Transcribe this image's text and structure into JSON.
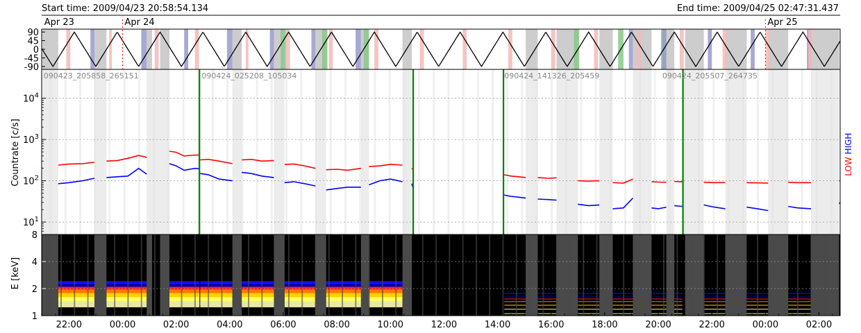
{
  "header": {
    "start_label": "Start time: 2009/04/23 20:58:54.134",
    "end_label": "End time: 2009/04/25 02:47:31.437"
  },
  "date_markers": [
    {
      "label": "Apr 23",
      "hour": 21.0
    },
    {
      "label": "Apr 24",
      "hour": 24.0
    },
    {
      "label": "Apr 25",
      "hour": 48.0
    }
  ],
  "colors": {
    "low": "#ff0000",
    "high": "#0000ff",
    "file_boundary": "#008000",
    "date_line": "#ff0000",
    "gray_band": "#c8c8c8",
    "saa_band": "#9999cc",
    "night_band": "#f4b8b8",
    "green_band": "#88c888",
    "spectrogram_gap": "#4a4a4a"
  },
  "chart_data": [
    {
      "type": "line",
      "name": "orbit-panel",
      "y_ticks": [
        90,
        45,
        0,
        -45,
        -90
      ],
      "ylim": [
        -105,
        105
      ],
      "xlim_hours": [
        20.98,
        50.79
      ],
      "orbit_period_hours": 1.6,
      "orbit_phase_hour": 20.6,
      "legend": "none",
      "grid": false
    },
    {
      "type": "line",
      "name": "countrate-panel",
      "ylabel": "Countrate [c/s]",
      "yscale": "log",
      "ylim": [
        5,
        50000
      ],
      "y_tick_labels": [
        "10^1",
        "10^2",
        "10^3",
        "10^4"
      ],
      "y_tick_values": [
        10,
        100,
        1000,
        10000
      ],
      "grid": true,
      "right_labels": {
        "low": "LOW",
        "high": "HIGH"
      },
      "file_ids": [
        {
          "label": "090423_205858_265151",
          "hour": 21.0
        },
        {
          "label": "090424_025208_105034",
          "hour": 26.9
        },
        {
          "label": "090424_141326_205459",
          "hour": 38.2
        },
        {
          "label": "090424_205507_264735",
          "hour": 44.1
        }
      ],
      "file_boundaries_hours": [
        26.87,
        34.85,
        38.22,
        44.92
      ],
      "series": [
        {
          "name": "LOW",
          "segments": [
            {
              "x": [
                20.98,
                21.0
              ],
              "y": [
                205,
                210
              ]
            },
            {
              "x": [
                21.6,
                22.0,
                22.5,
                22.95
              ],
              "y": [
                240,
                255,
                260,
                280
              ]
            },
            {
              "x": [
                23.4,
                23.8,
                24.2,
                24.6,
                24.9
              ],
              "y": [
                300,
                310,
                350,
                410,
                370
              ]
            },
            {
              "x": [
                25.75,
                26.0,
                26.3,
                26.7,
                26.87
              ],
              "y": [
                520,
                490,
                400,
                420,
                420
              ]
            },
            {
              "x": [
                26.9,
                27.2,
                27.6,
                28.1
              ],
              "y": [
                320,
                330,
                300,
                260
              ]
            },
            {
              "x": [
                28.45,
                28.8,
                29.2,
                29.65
              ],
              "y": [
                320,
                330,
                300,
                310
              ]
            },
            {
              "x": [
                30.05,
                30.4,
                30.8,
                31.2
              ],
              "y": [
                250,
                255,
                230,
                200
              ]
            },
            {
              "x": [
                31.6,
                32.0,
                32.4,
                32.9
              ],
              "y": [
                185,
                190,
                180,
                200
              ]
            },
            {
              "x": [
                33.2,
                33.6,
                34.0,
                34.45
              ],
              "y": [
                220,
                230,
                250,
                240
              ]
            },
            {
              "x": [
                34.8,
                34.85
              ],
              "y": [
                200,
                185
              ]
            },
            {
              "x": [
                38.25,
                38.5,
                38.8,
                39.05
              ],
              "y": [
                140,
                130,
                125,
                120
              ]
            },
            {
              "x": [
                39.5,
                39.9,
                40.2
              ],
              "y": [
                120,
                115,
                118
              ]
            },
            {
              "x": [
                41.0,
                41.4,
                41.8
              ],
              "y": [
                100,
                98,
                100
              ]
            },
            {
              "x": [
                42.3,
                42.7,
                43.05
              ],
              "y": [
                90,
                88,
                110
              ]
            },
            {
              "x": [
                43.75,
                44.0,
                44.3
              ],
              "y": [
                95,
                93,
                92
              ]
            },
            {
              "x": [
                44.6,
                44.9
              ],
              "y": [
                96,
                95
              ]
            },
            {
              "x": [
                45.7,
                46.1,
                46.5
              ],
              "y": [
                92,
                90,
                91
              ]
            },
            {
              "x": [
                47.3,
                47.7,
                48.1
              ],
              "y": [
                90,
                89,
                88
              ]
            },
            {
              "x": [
                48.85,
                49.2,
                49.7
              ],
              "y": [
                92,
                90,
                90
              ]
            },
            {
              "x": [
                50.75,
                50.79
              ],
              "y": [
                100,
                100
              ]
            }
          ]
        },
        {
          "name": "HIGH",
          "segments": [
            {
              "x": [
                20.98,
                21.0
              ],
              "y": [
                80,
                82
              ]
            },
            {
              "x": [
                21.6,
                22.0,
                22.5,
                22.95
              ],
              "y": [
                85,
                90,
                100,
                115
              ]
            },
            {
              "x": [
                23.4,
                23.8,
                24.2,
                24.6,
                24.9
              ],
              "y": [
                120,
                125,
                130,
                200,
                145
              ]
            },
            {
              "x": [
                25.75,
                26.0,
                26.3,
                26.7,
                26.87
              ],
              "y": [
                260,
                230,
                180,
                200,
                195
              ]
            },
            {
              "x": [
                26.9,
                27.2,
                27.6,
                28.1
              ],
              "y": [
                150,
                140,
                110,
                100
              ]
            },
            {
              "x": [
                28.45,
                28.8,
                29.2,
                29.65
              ],
              "y": [
                160,
                150,
                130,
                120
              ]
            },
            {
              "x": [
                30.05,
                30.4,
                30.8,
                31.2
              ],
              "y": [
                90,
                95,
                85,
                75
              ]
            },
            {
              "x": [
                31.6,
                32.0,
                32.4,
                32.9
              ],
              "y": [
                60,
                65,
                70,
                70
              ]
            },
            {
              "x": [
                33.2,
                33.6,
                34.0,
                34.45
              ],
              "y": [
                80,
                100,
                110,
                95
              ]
            },
            {
              "x": [
                34.8,
                34.85
              ],
              "y": [
                85,
                65
              ]
            },
            {
              "x": [
                38.25,
                38.5,
                38.8,
                39.05
              ],
              "y": [
                45,
                42,
                40,
                38
              ]
            },
            {
              "x": [
                39.5,
                39.9,
                40.2
              ],
              "y": [
                36,
                35,
                34
              ]
            },
            {
              "x": [
                41.0,
                41.4,
                41.8
              ],
              "y": [
                27,
                25,
                26
              ]
            },
            {
              "x": [
                42.3,
                42.7,
                43.05
              ],
              "y": [
                21,
                22,
                38
              ]
            },
            {
              "x": [
                43.75,
                44.0,
                44.3
              ],
              "y": [
                22,
                21,
                23
              ]
            },
            {
              "x": [
                44.6,
                44.9
              ],
              "y": [
                25,
                24
              ]
            },
            {
              "x": [
                45.7,
                46.1,
                46.5
              ],
              "y": [
                26,
                23,
                21
              ]
            },
            {
              "x": [
                47.3,
                47.7,
                48.1
              ],
              "y": [
                23,
                21,
                19
              ]
            },
            {
              "x": [
                48.85,
                49.2,
                49.7
              ],
              "y": [
                24,
                22,
                21
              ]
            },
            {
              "x": [
                50.75,
                50.79
              ],
              "y": [
                28,
                30
              ]
            }
          ]
        }
      ]
    },
    {
      "type": "heatmap",
      "name": "spectrogram-panel",
      "ylabel": "E [keV]",
      "yscale": "log",
      "ylim": [
        1,
        8
      ],
      "y_tick_labels": [
        "1",
        "2",
        "4",
        "8"
      ],
      "y_tick_values": [
        1,
        2,
        4,
        8
      ],
      "x_tick_labels": [
        "22:00",
        "00:00",
        "02:00",
        "04:00",
        "06:00",
        "08:00",
        "10:00",
        "12:00",
        "14:00",
        "16:00",
        "18:00",
        "20:00",
        "22:00",
        "00:00",
        "02:00"
      ],
      "x_tick_hours": [
        22,
        24,
        26,
        28,
        30,
        32,
        34,
        36,
        38,
        40,
        42,
        44,
        46,
        48,
        50
      ],
      "xlim_hours": [
        20.98,
        50.79
      ],
      "data_gaps_hours": [
        [
          34.87,
          38.2
        ]
      ]
    }
  ],
  "gray_bands_hours": [
    [
      21.0,
      21.6
    ],
    [
      22.95,
      23.4
    ],
    [
      24.9,
      25.1
    ],
    [
      25.4,
      25.75
    ],
    [
      28.1,
      28.45
    ],
    [
      29.65,
      30.05
    ],
    [
      31.2,
      31.6
    ],
    [
      32.9,
      33.2
    ],
    [
      34.45,
      34.8
    ],
    [
      39.05,
      39.5
    ],
    [
      40.2,
      41.0
    ],
    [
      41.8,
      42.3
    ],
    [
      43.05,
      43.75
    ],
    [
      44.3,
      44.6
    ],
    [
      45.0,
      45.7
    ],
    [
      46.5,
      47.3
    ],
    [
      48.1,
      48.85
    ],
    [
      49.7,
      50.75
    ]
  ],
  "saa_bands_hours": [
    [
      22.8,
      22.95
    ],
    [
      24.7,
      24.9
    ],
    [
      26.3,
      26.45
    ],
    [
      27.9,
      28.1
    ],
    [
      29.5,
      29.65
    ],
    [
      31.05,
      31.2
    ],
    [
      32.7,
      32.9
    ],
    [
      42.9,
      43.05
    ],
    [
      44.15,
      44.3
    ],
    [
      45.85,
      46.0
    ],
    [
      47.45,
      47.6
    ],
    [
      49.55,
      49.7
    ]
  ],
  "night_bands_hours": [
    [
      21.9,
      22.05
    ],
    [
      23.5,
      23.6
    ],
    [
      25.2,
      25.35
    ],
    [
      26.7,
      26.85
    ],
    [
      28.6,
      28.7
    ],
    [
      30.1,
      30.25
    ],
    [
      31.7,
      31.85
    ],
    [
      33.4,
      33.55
    ],
    [
      35.1,
      35.25
    ],
    [
      36.7,
      36.85
    ],
    [
      38.4,
      38.55
    ],
    [
      40.0,
      40.15
    ],
    [
      41.6,
      41.75
    ],
    [
      43.2,
      43.35
    ],
    [
      44.8,
      44.95
    ],
    [
      46.4,
      46.55
    ],
    [
      48.0,
      48.15
    ],
    [
      49.6,
      49.75
    ]
  ],
  "green_bands_hours": [
    [
      29.9,
      30.1
    ],
    [
      31.45,
      31.65
    ],
    [
      33.0,
      33.2
    ],
    [
      40.85,
      41.05
    ],
    [
      42.5,
      42.7
    ],
    [
      44.1,
      44.3
    ]
  ]
}
